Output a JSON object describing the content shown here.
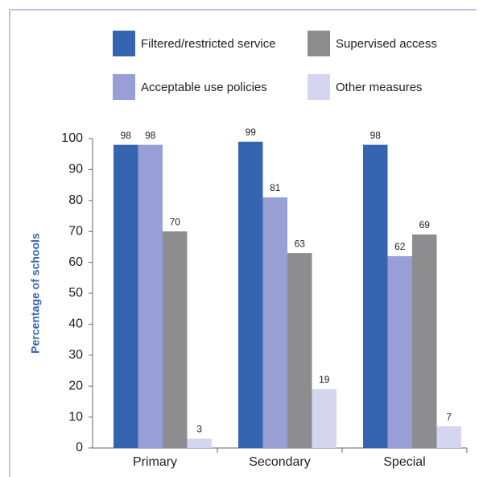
{
  "chart_data": {
    "type": "bar",
    "y_label": "Percentage of schools",
    "categories": [
      "Primary",
      "Secondary",
      "Special"
    ],
    "series": [
      {
        "name": "Filtered/restricted service",
        "color": "#3565b0",
        "values": [
          98,
          99,
          98
        ]
      },
      {
        "name": "Acceptable use policies",
        "color": "#979fd6",
        "values": [
          98,
          81,
          62
        ]
      },
      {
        "name": "Supervised access",
        "color": "#8d8d90",
        "values": [
          70,
          63,
          69
        ]
      },
      {
        "name": "Other measures",
        "color": "#d4d6f0",
        "values": [
          3,
          19,
          7
        ]
      }
    ],
    "ylim": [
      0,
      100
    ],
    "yticks": [
      0,
      10,
      20,
      30,
      40,
      50,
      60,
      70,
      80,
      90,
      100
    ],
    "grid": false
  }
}
